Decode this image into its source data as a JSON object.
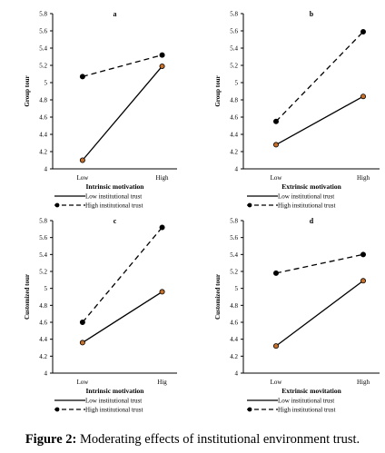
{
  "caption": {
    "label": "Figure 2:",
    "text": " Moderating effects of institutional environment trust."
  },
  "chart_data": [
    {
      "type": "line",
      "panel_label": "a",
      "title": "",
      "xlabel": "Intrinsic motivation",
      "ylabel": "Group tour",
      "categories": [
        "Low",
        "High"
      ],
      "ylim": [
        4,
        5.8
      ],
      "yticks": [
        "4",
        "4.2",
        "4.4",
        "4.6",
        "4.8",
        "5",
        "5.2",
        "5.4",
        "5.6",
        "5.8"
      ],
      "grid": false,
      "legend_position": "bottom-left",
      "series": [
        {
          "name": "Low institutional trust",
          "style": "solid",
          "values": [
            4.1,
            5.19
          ]
        },
        {
          "name": "High institutional trust",
          "style": "dashed",
          "values": [
            5.07,
            5.32
          ]
        }
      ]
    },
    {
      "type": "line",
      "panel_label": "b",
      "title": "",
      "xlabel": "Extrinsic motivation",
      "ylabel": "Group tour",
      "categories": [
        "Low",
        "High"
      ],
      "ylim": [
        4,
        5.8
      ],
      "yticks": [
        "4",
        "4.2",
        "4.4",
        "4.6",
        "4.8",
        "5",
        "5.2",
        "5.4",
        "5.6",
        "5.8"
      ],
      "grid": false,
      "legend_position": "bottom-left",
      "series": [
        {
          "name": "Low institutional trust",
          "style": "solid",
          "values": [
            4.28,
            4.84
          ]
        },
        {
          "name": "High institutional trust",
          "style": "dashed",
          "values": [
            4.55,
            5.59
          ]
        }
      ]
    },
    {
      "type": "line",
      "panel_label": "c",
      "title": "",
      "xlabel": "Intrinsic motivation",
      "ylabel": "Customized tour",
      "categories": [
        "Low",
        "Hig"
      ],
      "ylim": [
        4,
        5.8
      ],
      "yticks": [
        "4",
        "4.2",
        "4.4",
        "4.6",
        "4.8",
        "5",
        "5.2",
        "5.4",
        "5.6",
        "5.8"
      ],
      "grid": false,
      "legend_position": "bottom-left",
      "series": [
        {
          "name": "Low institutional trust",
          "style": "solid",
          "values": [
            4.36,
            4.96
          ]
        },
        {
          "name": "High institutional trust",
          "style": "dashed",
          "values": [
            4.6,
            5.72
          ]
        }
      ]
    },
    {
      "type": "line",
      "panel_label": "d",
      "title": "",
      "xlabel": "Extrinsic movitation",
      "ylabel": "Customized tour",
      "categories": [
        "Low",
        "High"
      ],
      "ylim": [
        4,
        5.8
      ],
      "yticks": [
        "4",
        "4.2",
        "4.4",
        "4.6",
        "4.8",
        "5",
        "5.2",
        "5.4",
        "5.6",
        "5.8"
      ],
      "grid": false,
      "legend_position": "bottom-left",
      "series": [
        {
          "name": "Low institutional trust",
          "style": "solid",
          "values": [
            4.32,
            5.09
          ]
        },
        {
          "name": "High institutional trust",
          "style": "dashed",
          "values": [
            5.18,
            5.4
          ]
        }
      ]
    }
  ]
}
